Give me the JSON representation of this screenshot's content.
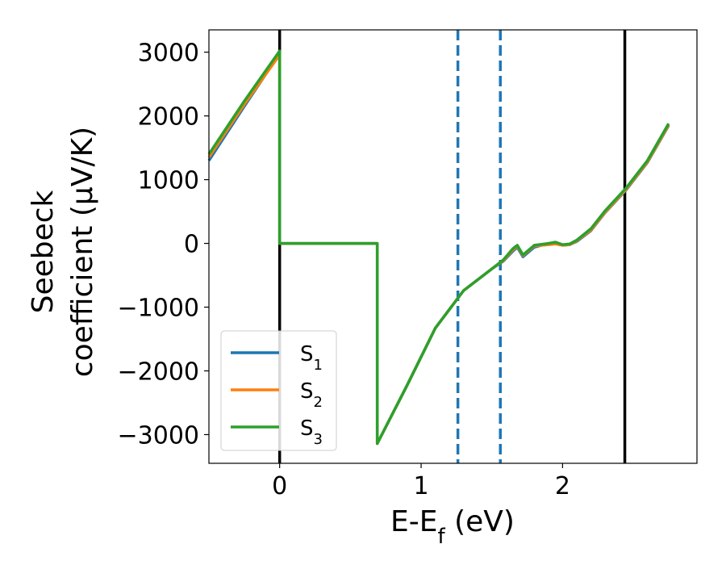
{
  "chart_data": {
    "type": "line",
    "xlabel": "E-E_f (eV)",
    "xlabel_parts": {
      "base": "E-E",
      "sub": "f",
      "rest": " (eV)"
    },
    "ylabel_lines": [
      "Seebeck",
      "coefficient  (μV/K)"
    ],
    "xlim": [
      -0.5,
      2.95
    ],
    "ylim": [
      -3450,
      3350
    ],
    "x_ticks": [
      0,
      1,
      2
    ],
    "x_tick_labels": [
      "0",
      "1",
      "2"
    ],
    "y_ticks": [
      -3000,
      -2000,
      -1000,
      0,
      1000,
      2000,
      3000
    ],
    "y_tick_labels": [
      "−3000",
      "−2000",
      "−1000",
      "0",
      "1000",
      "2000",
      "3000"
    ],
    "grid": false,
    "legend_position": "lower-left",
    "series": [
      {
        "name": "S1",
        "label_base": "S",
        "label_sub": "1",
        "color": "#1f77b4",
        "x": [
          -0.5,
          -0.25,
          0.0,
          0.0,
          0.3,
          0.69,
          0.69,
          0.9,
          1.1,
          1.3,
          1.5,
          1.58,
          1.65,
          1.68,
          1.72,
          1.8,
          1.9,
          1.95,
          2.0,
          2.05,
          2.1,
          2.2,
          2.3,
          2.45,
          2.6,
          2.75
        ],
        "y": [
          1300,
          2150,
          2980,
          0,
          0,
          0,
          -3140,
          -2230,
          -1330,
          -740,
          -400,
          -280,
          -120,
          -60,
          -210,
          -60,
          0,
          10,
          -30,
          -20,
          30,
          200,
          480,
          840,
          1270,
          1850
        ]
      },
      {
        "name": "S2",
        "label_base": "S",
        "label_sub": "2",
        "color": "#ff7f0e",
        "x": [
          -0.5,
          -0.25,
          0.0,
          0.0,
          0.3,
          0.69,
          0.69,
          0.9,
          1.1,
          1.3,
          1.5,
          1.58,
          1.65,
          1.68,
          1.72,
          1.8,
          1.9,
          1.95,
          2.0,
          2.05,
          2.1,
          2.2,
          2.3,
          2.45,
          2.6,
          2.75
        ],
        "y": [
          1350,
          2180,
          2960,
          0,
          0,
          0,
          -3140,
          -2230,
          -1330,
          -740,
          -400,
          -270,
          -100,
          -40,
          -190,
          -40,
          -20,
          -10,
          -30,
          -20,
          40,
          210,
          490,
          850,
          1280,
          1860
        ]
      },
      {
        "name": "S3",
        "label_base": "S",
        "label_sub": "3",
        "color": "#2ca02c",
        "x": [
          -0.5,
          -0.25,
          0.0,
          0.0,
          0.3,
          0.69,
          0.69,
          0.9,
          1.1,
          1.3,
          1.5,
          1.58,
          1.65,
          1.68,
          1.72,
          1.8,
          1.9,
          1.95,
          2.0,
          2.05,
          2.1,
          2.2,
          2.3,
          2.45,
          2.6,
          2.75
        ],
        "y": [
          1400,
          2230,
          3020,
          0,
          0,
          0,
          -3140,
          -2230,
          -1330,
          -740,
          -400,
          -260,
          -80,
          -30,
          -180,
          -30,
          0,
          20,
          -20,
          -10,
          50,
          230,
          510,
          870,
          1300,
          1880
        ]
      }
    ],
    "vertical_lines": [
      {
        "name": "band-edge-left-line",
        "x": 0.0,
        "color": "#000000",
        "style": "solid"
      },
      {
        "name": "dashed-marker-1-line",
        "x": 1.26,
        "color": "#1f77b4",
        "style": "dashed"
      },
      {
        "name": "dashed-marker-2-line",
        "x": 1.56,
        "color": "#1f77b4",
        "style": "dashed"
      },
      {
        "name": "band-edge-right-line",
        "x": 2.44,
        "color": "#000000",
        "style": "solid"
      }
    ]
  }
}
